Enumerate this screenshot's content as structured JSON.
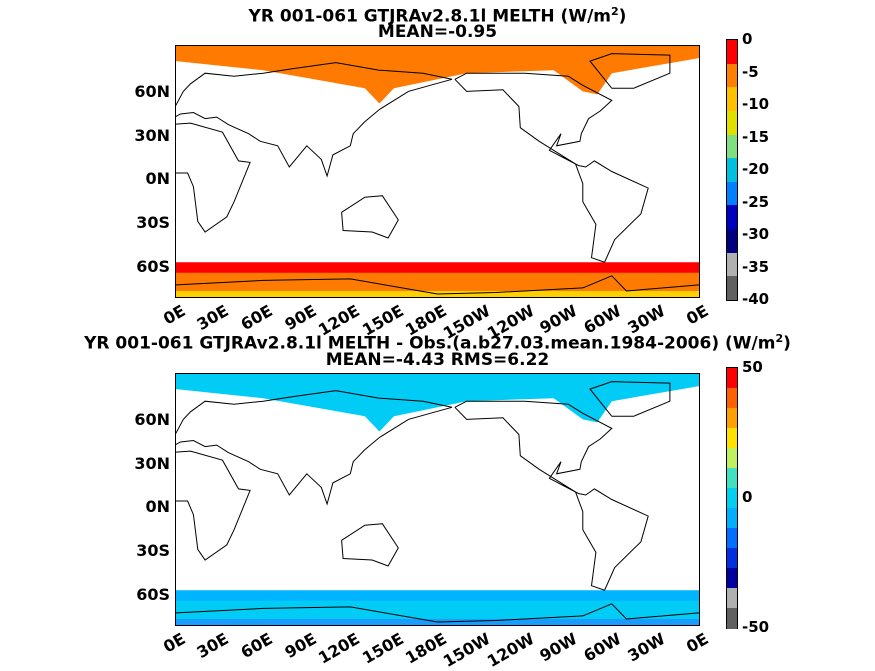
{
  "panels": [
    {
      "title_line1": "YR 001-061 GTJRAv2.8.1l  MELTH (W/m",
      "title_sup": "2",
      "title_close": ")",
      "title_line2": "MEAN=-0.95",
      "colorbar": {
        "ticks": [
          "0",
          "-5",
          "-10",
          "-15",
          "-20",
          "-25",
          "-30",
          "-35",
          "-40"
        ],
        "colors": [
          "#ff0000",
          "#ff8000",
          "#ffc000",
          "#e0e000",
          "#80e080",
          "#00c0e0",
          "#0080ff",
          "#0000c0",
          "#000080",
          "#b0b0b0",
          "#606060"
        ]
      },
      "ylabels": [
        "60N",
        "30N",
        "0N",
        "30S",
        "60S"
      ],
      "xlabels": [
        "0E",
        "30E",
        "60E",
        "90E",
        "120E",
        "150E",
        "180E",
        "150W",
        "120W",
        "90W",
        "60W",
        "30W",
        "0E"
      ],
      "field_colors": {
        "main": "#ff7a00",
        "edge": "#ff0000",
        "inner": "#ffd000"
      }
    },
    {
      "title_line1": "YR 001-061 GTJRAv2.8.1l MELTH - Obs.(a.b27.03.mean.1984-2006) (W/m",
      "title_sup": "2",
      "title_close": ")",
      "title_line2": "MEAN=-4.43 RMS=6.22",
      "colorbar": {
        "ticks": [
          "50",
          "0",
          "-50"
        ],
        "colors": [
          "#ff0000",
          "#ff6000",
          "#ffa000",
          "#ffe000",
          "#c0f060",
          "#40e0c0",
          "#00d0f0",
          "#00b0ff",
          "#0070ff",
          "#0030e0",
          "#0000a0",
          "#b0b0b0",
          "#606060"
        ]
      },
      "ylabels": [
        "60N",
        "30N",
        "0N",
        "30S",
        "60S"
      ],
      "xlabels": [
        "0E",
        "30E",
        "60E",
        "90E",
        "120E",
        "150E",
        "180E",
        "150W",
        "120W",
        "90W",
        "60W",
        "30W",
        "0E"
      ],
      "field_colors": {
        "main": "#00ccf5",
        "edge": "#00b4ff",
        "inner": "#1a9cff"
      }
    }
  ],
  "chart_data": [
    {
      "type": "heatmap",
      "title": "YR 001-061 GTJRAv2.8.1l  MELTH (W/m2)",
      "subtitle": "MEAN=-0.95",
      "x_ticks": [
        "0E",
        "30E",
        "60E",
        "90E",
        "120E",
        "150E",
        "180E",
        "150W",
        "120W",
        "90W",
        "60W",
        "30W",
        "0E"
      ],
      "y_ticks": [
        "60N",
        "30N",
        "0N",
        "30S",
        "60S"
      ],
      "colorbar_range": [
        -40,
        0
      ],
      "colorbar_ticks": [
        0,
        -5,
        -10,
        -15,
        -20,
        -25,
        -30,
        -35,
        -40
      ],
      "mean": -0.95
    },
    {
      "type": "heatmap",
      "title": "YR 001-061 GTJRAv2.8.1l MELTH - Obs.(a.b27.03.mean.1984-2006) (W/m2)",
      "subtitle": "MEAN=-4.43 RMS=6.22",
      "x_ticks": [
        "0E",
        "30E",
        "60E",
        "90E",
        "120E",
        "150E",
        "180E",
        "150W",
        "120W",
        "90W",
        "60W",
        "30W",
        "0E"
      ],
      "y_ticks": [
        "60N",
        "30N",
        "0N",
        "30S",
        "60S"
      ],
      "colorbar_range": [
        -50,
        50
      ],
      "colorbar_ticks": [
        50,
        0,
        -50
      ],
      "mean": -4.43,
      "rms": 6.22
    }
  ]
}
